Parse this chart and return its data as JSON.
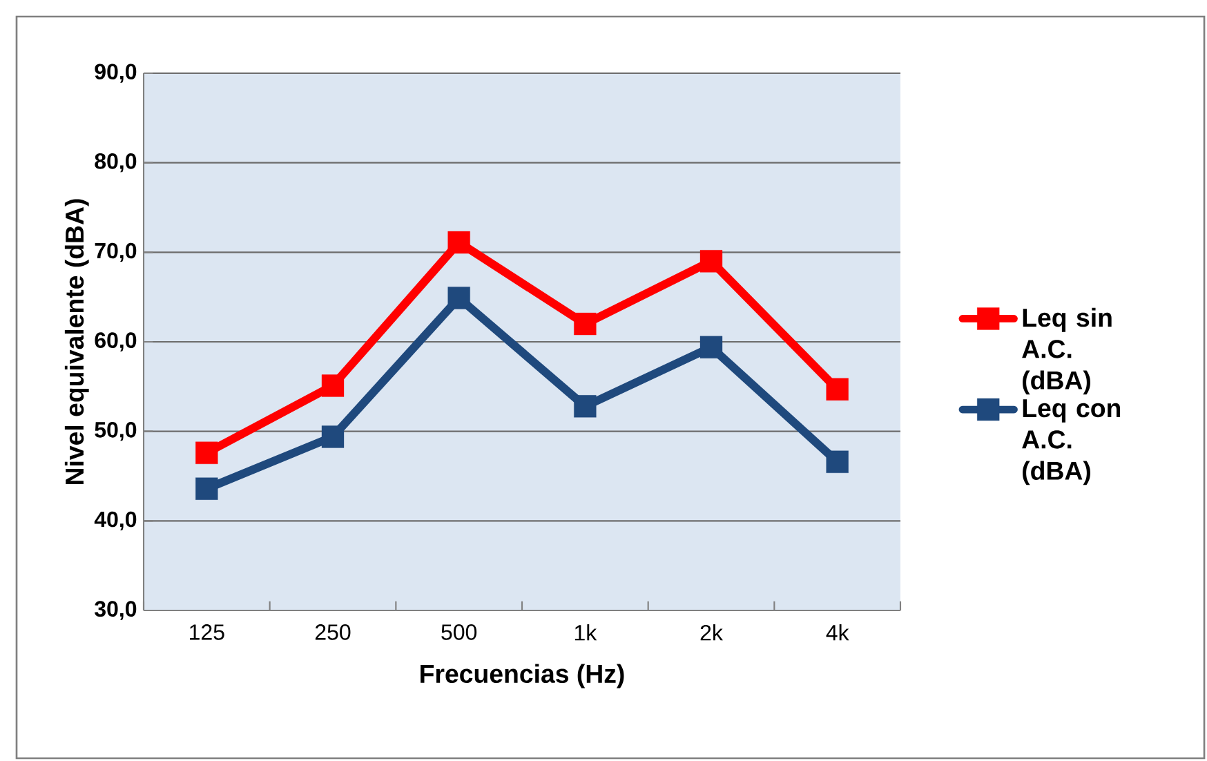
{
  "chart_data": {
    "type": "line",
    "xlabel": "Frecuencias (Hz)",
    "ylabel": "Nivel equivalente (dBA)",
    "categories": [
      "125",
      "250",
      "500",
      "1k",
      "2k",
      "4k"
    ],
    "series": [
      {
        "name": "Leq sin A.C. (dBA)",
        "color": "#ff0000",
        "values": [
          47.6,
          55.1,
          71.1,
          62.0,
          69.0,
          54.7
        ]
      },
      {
        "name": "Leq con A.C. (dBA)",
        "color": "#1f497d",
        "values": [
          43.6,
          49.4,
          64.9,
          52.8,
          59.4,
          46.6
        ]
      }
    ],
    "ylim": [
      30,
      90
    ],
    "yticks": [
      {
        "value": 30,
        "label": "30,0"
      },
      {
        "value": 40,
        "label": "40,0"
      },
      {
        "value": 50,
        "label": "50,0"
      },
      {
        "value": 60,
        "label": "60,0"
      },
      {
        "value": 70,
        "label": "70,0"
      },
      {
        "value": 80,
        "label": "80,0"
      },
      {
        "value": 90,
        "label": "90,0"
      }
    ],
    "grid": "y",
    "legend": "right",
    "marker": "square",
    "line_style": "solid"
  }
}
